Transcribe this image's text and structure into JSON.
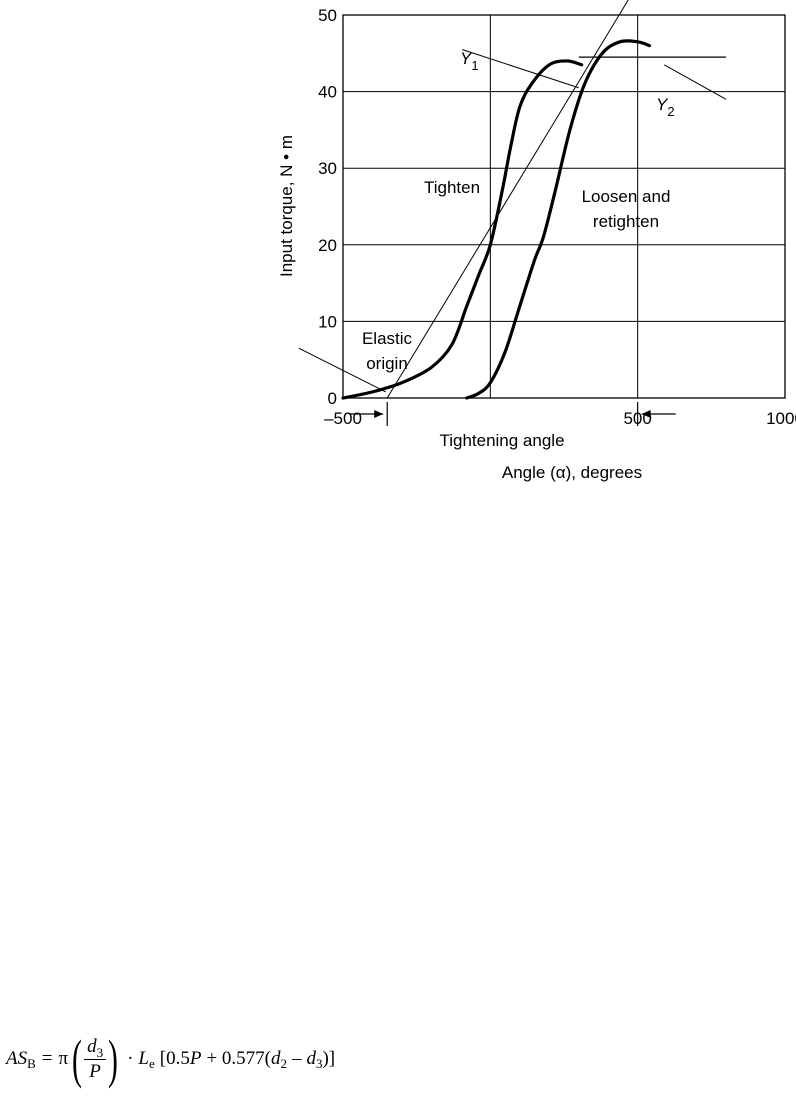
{
  "chart_data": {
    "type": "line",
    "xlabel": "Angle (α), degrees",
    "ylabel": "Input torque, N • m",
    "xlim": [
      -500,
      1000
    ],
    "ylim": [
      0,
      50
    ],
    "x_ticks": [
      "–500",
      "",
      "500",
      "1000"
    ],
    "x_tick_values": [
      -500,
      0,
      500,
      1000
    ],
    "y_ticks": [
      "0",
      "10",
      "20",
      "30",
      "40",
      "50"
    ],
    "y_tick_values": [
      0,
      10,
      20,
      30,
      40,
      50
    ],
    "grid": true,
    "series": [
      {
        "name": "Tighten",
        "points": [
          [
            -500,
            0
          ],
          [
            -400,
            0.8
          ],
          [
            -300,
            2
          ],
          [
            -200,
            4
          ],
          [
            -130,
            7
          ],
          [
            -80,
            12
          ],
          [
            -40,
            16
          ],
          [
            0,
            20
          ],
          [
            40,
            27
          ],
          [
            70,
            33
          ],
          [
            100,
            38
          ],
          [
            140,
            41
          ],
          [
            200,
            43.5
          ],
          [
            260,
            44
          ],
          [
            310,
            43.5
          ]
        ]
      },
      {
        "name": "Loosen and retighten",
        "points": [
          [
            -80,
            0
          ],
          [
            -40,
            0.6
          ],
          [
            0,
            2
          ],
          [
            50,
            6
          ],
          [
            100,
            12
          ],
          [
            150,
            18
          ],
          [
            180,
            21
          ],
          [
            220,
            27
          ],
          [
            270,
            35
          ],
          [
            320,
            41
          ],
          [
            380,
            45
          ],
          [
            440,
            46.5
          ],
          [
            500,
            46.5
          ],
          [
            540,
            46
          ]
        ]
      }
    ],
    "tangent_line": [
      [
        -350,
        0
      ],
      [
        500,
        54
      ]
    ],
    "gridlines_x": [
      0,
      500
    ],
    "gridlines_y": [
      10,
      20,
      30,
      40
    ],
    "y2_segment": {
      "x": [
        300,
        800
      ],
      "y": 44.5
    },
    "vertical_marks_x": [
      -350,
      0,
      500
    ],
    "annotations": {
      "y1": "Y",
      "y1_sub": "1",
      "y2": "Y",
      "y2_sub": "2",
      "tighten": "Tighten",
      "loosen_line1": "Loosen and",
      "loosen_line2": "retighten",
      "elastic_line1": "Elastic",
      "elastic_line2": "origin",
      "tightening_angle": "Tightening angle"
    }
  },
  "formula": {
    "lhs": "AS",
    "lhs_sub": "B",
    "equals": "=",
    "pi": "π",
    "num": "d",
    "num_sub": "3",
    "den": "P",
    "dot": "·",
    "le": "L",
    "le_sub": "e",
    "bracket_open": "[0.5",
    "p1": "P",
    "plus": "+ 0.577(",
    "d2": "d",
    "d2_sub": "2",
    "minus": "–",
    "d3": "d",
    "d3_sub": "3",
    "bracket_close": ")]"
  }
}
